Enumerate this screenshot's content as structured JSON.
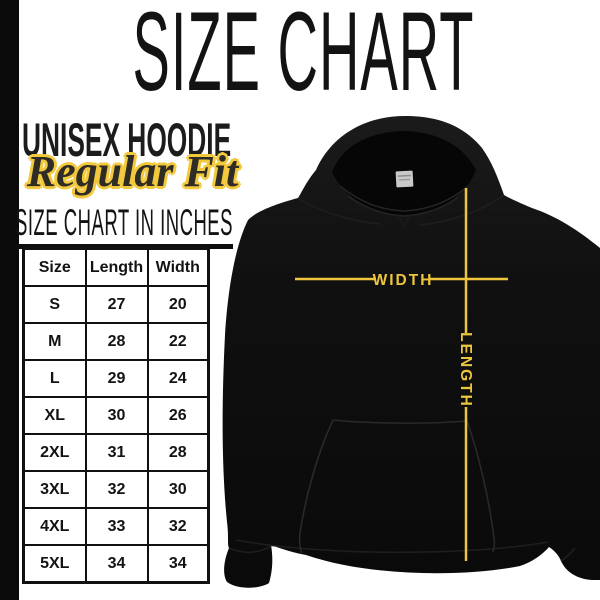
{
  "header": {
    "title": "SIZE CHART",
    "product_name": "UNISEX HOODIE",
    "fit_label": "Regular Fit",
    "table_heading": "SIZE CHART IN INCHES"
  },
  "size_table": {
    "columns": [
      "Size",
      "Length",
      "Width"
    ],
    "rows": [
      [
        "S",
        "27",
        "20"
      ],
      [
        "M",
        "28",
        "22"
      ],
      [
        "L",
        "29",
        "24"
      ],
      [
        "XL",
        "30",
        "26"
      ],
      [
        "2XL",
        "31",
        "28"
      ],
      [
        "3XL",
        "32",
        "30"
      ],
      [
        "4XL",
        "33",
        "32"
      ],
      [
        "5XL",
        "34",
        "34"
      ]
    ]
  },
  "hoodie_diagram": {
    "width_label": "WIDTH",
    "length_label": "LENGTH",
    "annotation_color": "#EDC63E",
    "garment_color": "#0E0E0E"
  }
}
